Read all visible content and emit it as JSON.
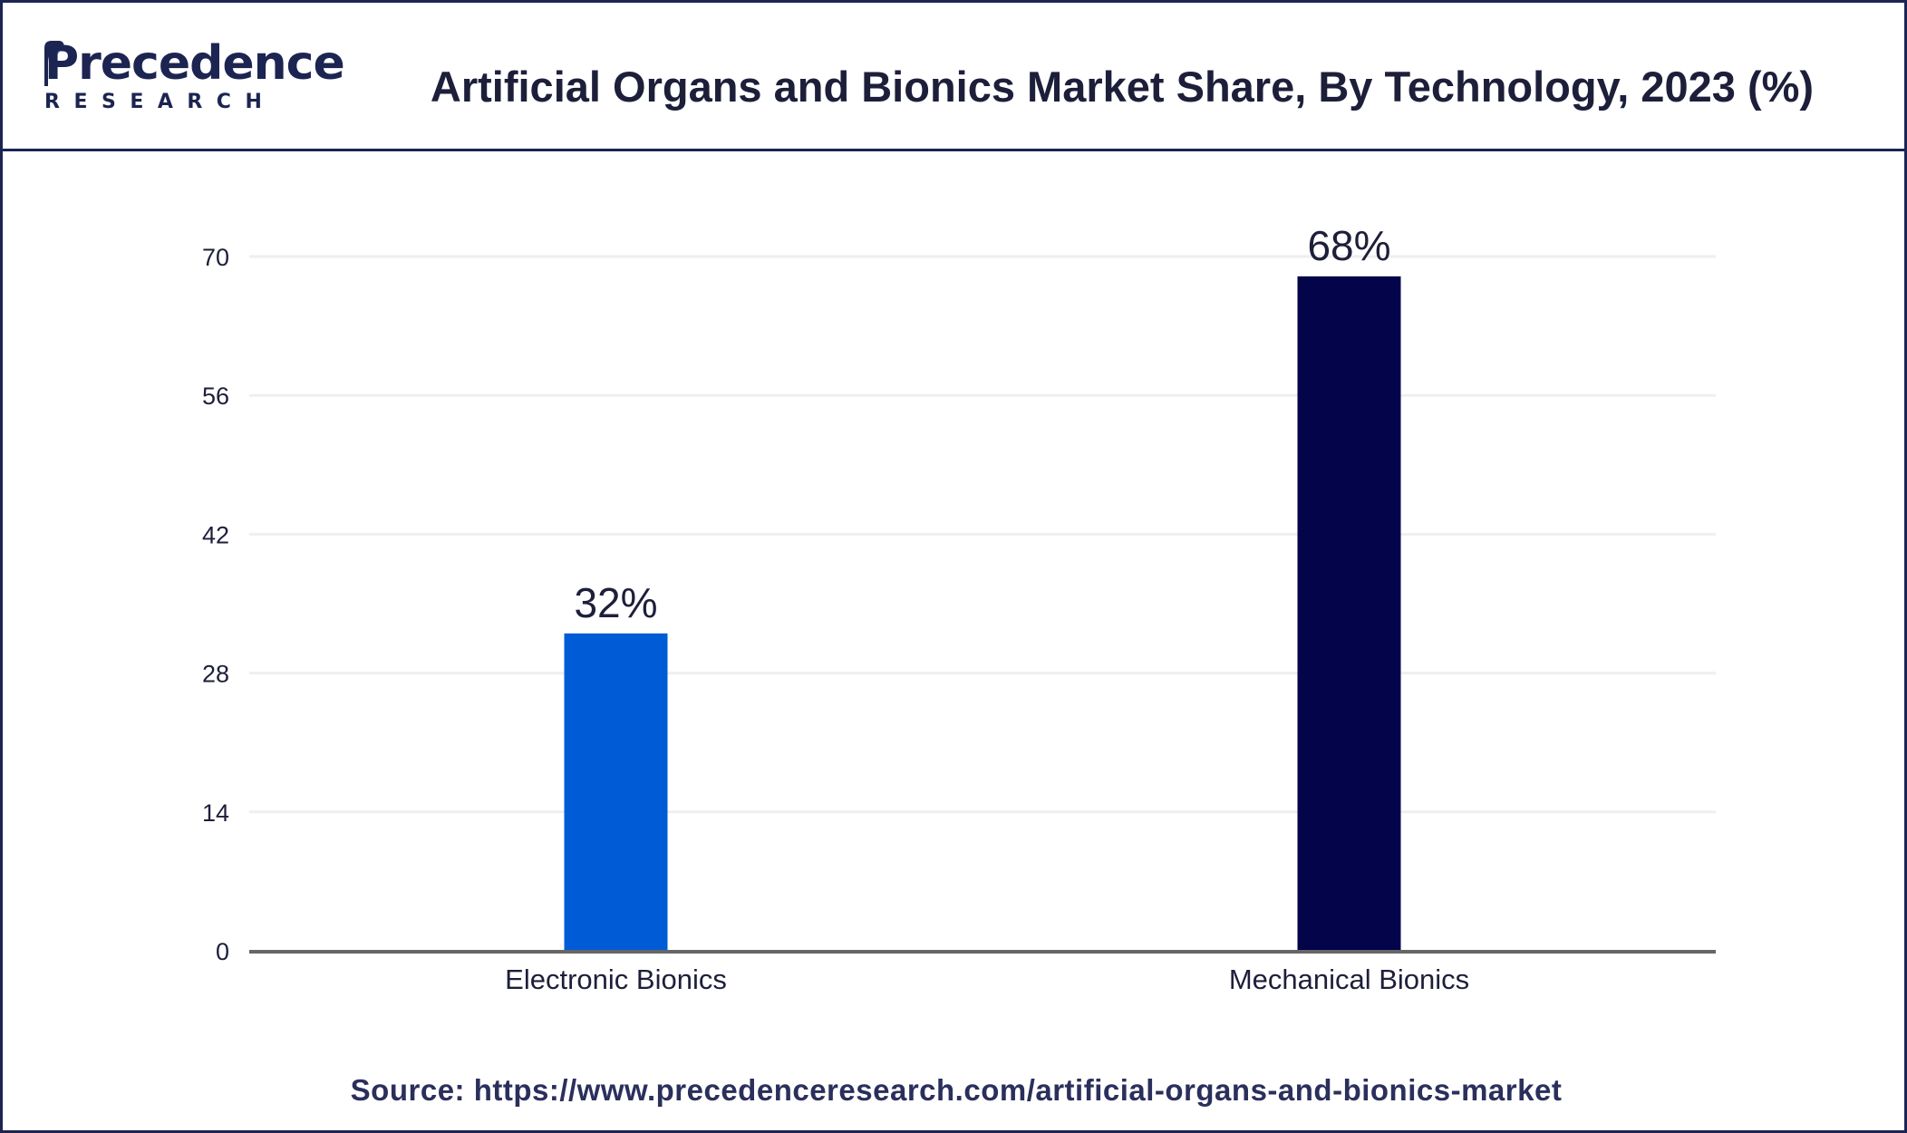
{
  "header": {
    "logo_word": "Precedence",
    "logo_sub": "RESEARCH",
    "title": "Artificial Organs and Bionics Market Share, By Technology, 2023 (%)"
  },
  "footer": {
    "source": "Source: https://www.precedenceresearch.com/artificial-organs-and-bionics-market"
  },
  "colors": {
    "frame": "#1c2452",
    "electronic_bar": "#005bd6",
    "mechanical_bar": "#03044a",
    "gridline": "#efefef",
    "axis": "#666666"
  },
  "chart_data": {
    "type": "bar",
    "title": "Artificial Organs and Bionics Market Share, By Technology, 2023 (%)",
    "xlabel": "",
    "ylabel": "",
    "categories": [
      "Electronic Bionics",
      "Mechanical Bionics"
    ],
    "values": [
      32,
      68
    ],
    "data_labels": [
      "32%",
      "68%"
    ],
    "bar_colors": [
      "#005bd6",
      "#03044a"
    ],
    "ylim": [
      0,
      70
    ],
    "yticks": [
      0,
      14,
      28,
      42,
      56,
      70
    ],
    "ytick_labels": [
      "0",
      "14",
      "28",
      "42",
      "56",
      "70"
    ],
    "grid": true,
    "legend": "none"
  }
}
